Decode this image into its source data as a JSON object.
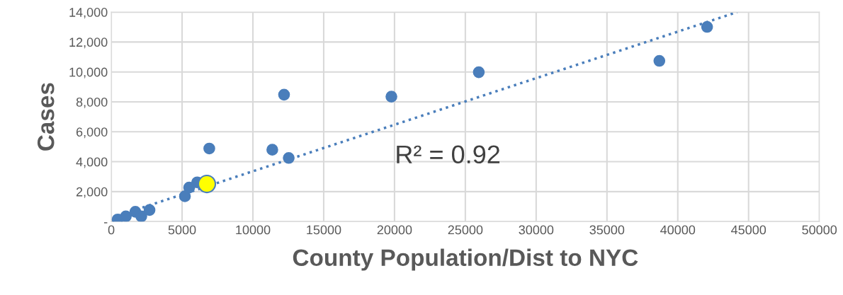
{
  "chart_data": {
    "type": "scatter",
    "xlabel": "County Population/Dist to NYC",
    "ylabel": "Cases",
    "xlim": [
      0,
      50000
    ],
    "xticks": [
      0,
      5000,
      10000,
      15000,
      20000,
      25000,
      30000,
      35000,
      40000,
      45000,
      50000
    ],
    "ylim": [
      0,
      14000
    ],
    "yticks": [
      {
        "value": 0,
        "label": "-"
      },
      {
        "value": 2000,
        "label": "2,000"
      },
      {
        "value": 4000,
        "label": "4,000"
      },
      {
        "value": 6000,
        "label": "6,000"
      },
      {
        "value": 8000,
        "label": "8,000"
      },
      {
        "value": 10000,
        "label": "10,000"
      },
      {
        "value": 12000,
        "label": "12,000"
      },
      {
        "value": 14000,
        "label": "14,000"
      }
    ],
    "grid": true,
    "marker": "circle",
    "annotations": [
      "R² = 0.92"
    ],
    "series": [
      {
        "color": "#4a7ebb",
        "x": [
          450,
          1030,
          1700,
          2120,
          2700,
          5200,
          5500,
          6070,
          6920,
          11370,
          12200,
          12530,
          19780,
          25950,
          38700,
          42070
        ],
        "values": [
          140,
          350,
          650,
          350,
          770,
          1690,
          2270,
          2620,
          4880,
          4800,
          8480,
          4250,
          8350,
          9980,
          10740,
          13010
        ]
      },
      {
        "color": "#ffff00",
        "x": [
          6750
        ],
        "values": [
          2510
        ]
      },
      {
        "type": "line",
        "color": "#4a7ebb",
        "line_style": "dotted",
        "marker": "none",
        "x": [
          450,
          44200
        ],
        "values": [
          390,
          14000
        ]
      }
    ]
  }
}
